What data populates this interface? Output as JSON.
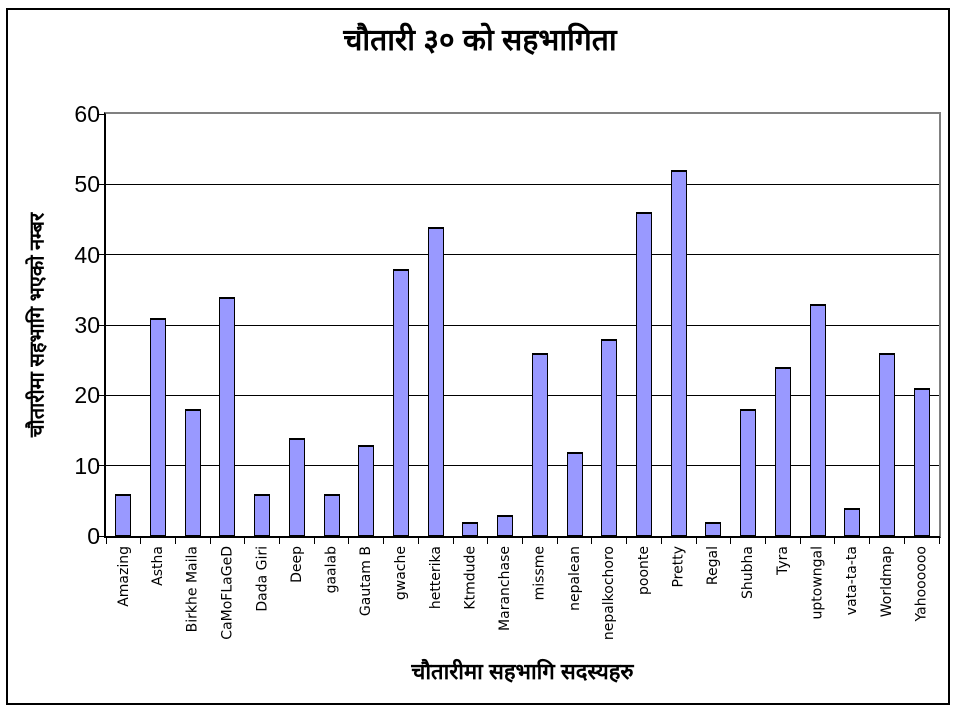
{
  "chart_data": {
    "type": "bar",
    "title": "चौतारी ३० को सहभागिता",
    "xlabel": "चौतारीमा सहभागि सदस्यहरु",
    "ylabel": "चौतारीमा सहभागि भएको नम्बर",
    "categories": [
      "Amazing",
      "Astha",
      "Birkhe Maila",
      "CaMoFLaGeD",
      "Dada Giri",
      "Deep",
      "gaalab",
      "Gautam B",
      "gwache",
      "hetterika",
      "Ktmdude",
      "Maranchase",
      "missme",
      "nepalean",
      "nepalkochoro",
      "poonte",
      "Pretty",
      "Regal",
      "Shubha",
      "Tyra",
      "uptowngal",
      "vata-ta-ta",
      "Worldmap",
      "Yahoooooo"
    ],
    "values": [
      6,
      31,
      18,
      34,
      6,
      14,
      6,
      13,
      38,
      44,
      2,
      3,
      26,
      12,
      28,
      46,
      52,
      2,
      18,
      24,
      33,
      4,
      26,
      21
    ],
    "ylim": [
      0,
      60
    ],
    "yticks": [
      0,
      10,
      20,
      30,
      40,
      50,
      60
    ],
    "grid": true,
    "legend": "none",
    "bar_color": "#9999FF",
    "bar_border_color": "#000000",
    "gridline_color": "#000000",
    "axis_color": "#000000",
    "plot_border_color": "#808080",
    "text_color": "#000000",
    "background_color": "#FFFFFF"
  }
}
